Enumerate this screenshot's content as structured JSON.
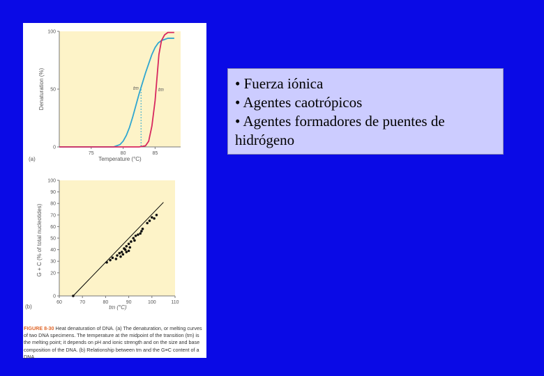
{
  "bullets": [
    "• Fuerza iónica",
    "• Agentes caotrópicos",
    "• Agentes formadores de puentes de hidrógeno"
  ],
  "colors": {
    "background": "#0a0ae6",
    "plot_bg": "#fdf3c8",
    "blue_curve": "#2fa6d0",
    "red_curve": "#d7275f",
    "bullet_box": "#ccccff"
  },
  "figure": {
    "caption_label": "FIGURE 8-30",
    "caption_text": "Heat denaturation of DNA. (a) The denaturation, or melting curves of two DNA specimens. The temperature at the midpoint of the transition (tm) is the melting point; it depends on pH and ionic strength and on the size and base composition of the DNA. (b) Relationship between tm and the G≡C content of a DNA."
  },
  "chart_data": [
    {
      "type": "line",
      "panel_label": "(a)",
      "xlabel": "Temperature (°C)",
      "ylabel": "Denaturation (%)",
      "xlim": [
        70,
        89
      ],
      "ylim": [
        0,
        100
      ],
      "xticks": [
        "75",
        "80",
        "85"
      ],
      "yticks": [
        "0",
        "50",
        "100"
      ],
      "annotations": [
        "tm",
        "tm"
      ],
      "series": [
        {
          "color": "#2fa6d0",
          "x": [
            70,
            77,
            78.5,
            79.5,
            80,
            80.5,
            81,
            81.5,
            82,
            82.5,
            83,
            83.5,
            84,
            84.5,
            85,
            85.5,
            86,
            86.5,
            87,
            88
          ],
          "y": [
            0,
            0,
            0,
            2,
            5,
            10,
            17,
            26,
            36,
            46,
            55,
            64,
            72,
            80,
            86,
            90,
            92,
            93,
            94,
            94
          ]
        },
        {
          "color": "#d7275f",
          "x": [
            70,
            82.5,
            83.5,
            84,
            84.5,
            85,
            85.3,
            85.6,
            86,
            86.5,
            87,
            88
          ],
          "y": [
            0,
            0,
            1,
            5,
            18,
            40,
            60,
            80,
            92,
            97,
            99,
            99
          ]
        }
      ]
    },
    {
      "type": "scatter",
      "panel_label": "(b)",
      "xlabel": "tm (°C)",
      "ylabel": "G + C (% of total nucleotides)",
      "xlim": [
        60,
        110
      ],
      "ylim": [
        0,
        100
      ],
      "xticks": [
        "60",
        "70",
        "80",
        "90",
        "100",
        "110"
      ],
      "yticks": [
        "0",
        "20",
        "30",
        "40",
        "50",
        "60",
        "70",
        "80",
        "90",
        "100"
      ],
      "fit_line": {
        "x": [
          66,
          105
        ],
        "y": [
          0,
          81
        ]
      },
      "points": [
        [
          66,
          0
        ],
        [
          80.5,
          29
        ],
        [
          82,
          31
        ],
        [
          83,
          33
        ],
        [
          84.5,
          32
        ],
        [
          85,
          35
        ],
        [
          86,
          37
        ],
        [
          87,
          38
        ],
        [
          87.5,
          36
        ],
        [
          88,
          41
        ],
        [
          88.5,
          40
        ],
        [
          89,
          43
        ],
        [
          90,
          45
        ],
        [
          90.5,
          42
        ],
        [
          91,
          47
        ],
        [
          92,
          50
        ],
        [
          92.5,
          48
        ],
        [
          93,
          52
        ],
        [
          94,
          53
        ],
        [
          95,
          54
        ],
        [
          95.5,
          56
        ],
        [
          96,
          58
        ],
        [
          98,
          63
        ],
        [
          99,
          65
        ],
        [
          100,
          68
        ],
        [
          101,
          67
        ],
        [
          102,
          70
        ],
        [
          89,
          38
        ],
        [
          90,
          39
        ],
        [
          86.5,
          34
        ]
      ]
    }
  ]
}
